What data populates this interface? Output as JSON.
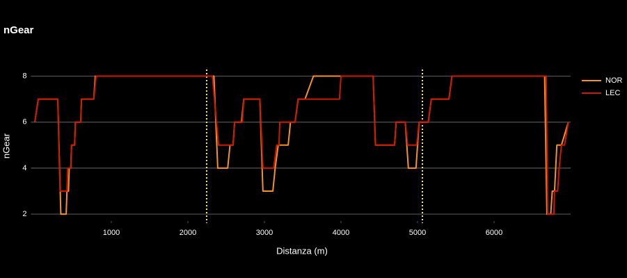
{
  "chart_data": {
    "type": "line",
    "title": "nGear",
    "x_label": "Distanza (m)",
    "y_label": "nGear",
    "xlim": [
      -50,
      7000
    ],
    "xticks": [
      1000,
      2000,
      3000,
      4000,
      5000,
      6000
    ],
    "ylim": [
      1.7,
      8.5
    ],
    "yticks": [
      2,
      4,
      6,
      8
    ],
    "grid": true,
    "legend": "right",
    "vlines": {
      "x": [
        2245,
        5064
      ],
      "color": "#ffe873"
    },
    "series": [
      {
        "name": "NOR",
        "color": "#f5922b",
        "x": [
          0,
          45,
          300,
          340,
          410,
          420,
          440,
          450,
          470,
          480,
          520,
          530,
          600,
          610,
          770,
          790,
          2340,
          2390,
          2520,
          2550,
          2590,
          2610,
          2700,
          2730,
          2940,
          2980,
          3110,
          3140,
          3180,
          3310,
          3340,
          3400,
          3440,
          3530,
          3640,
          4420,
          4450,
          4700,
          4720,
          4840,
          4880,
          4980,
          5020,
          5140,
          5180,
          5410,
          5450,
          6660,
          6690,
          6740,
          6760,
          6790,
          6820,
          6880,
          6970
        ],
        "values": [
          6,
          7,
          7,
          2,
          2,
          3,
          3,
          4,
          4,
          5,
          5,
          6,
          6,
          7,
          7,
          8,
          8,
          4,
          4,
          5,
          5,
          6,
          6,
          7,
          7,
          3,
          3,
          4,
          5,
          5,
          6,
          6,
          7,
          7,
          8,
          8,
          5,
          5,
          6,
          6,
          4,
          4,
          6,
          6,
          7,
          7,
          8,
          8,
          2,
          2,
          3,
          3,
          5,
          5,
          6
        ]
      },
      {
        "name": "LEC",
        "color": "#cc1a00",
        "x": [
          0,
          45,
          300,
          330,
          420,
          430,
          470,
          480,
          520,
          530,
          600,
          610,
          770,
          800,
          2320,
          2400,
          2590,
          2610,
          2710,
          2730,
          2940,
          2980,
          3120,
          3160,
          3190,
          3200,
          3400,
          3440,
          3980,
          4000,
          4420,
          4450,
          4700,
          4720,
          4840,
          4870,
          4990,
          5020,
          5140,
          5180,
          5410,
          5450,
          6680,
          6700,
          6780,
          6790,
          6830,
          6850,
          6880,
          6920,
          6970
        ],
        "values": [
          6,
          7,
          7,
          3,
          3,
          4,
          4,
          5,
          5,
          6,
          6,
          7,
          7,
          8,
          8,
          5,
          5,
          6,
          6,
          7,
          7,
          4,
          4,
          5,
          5,
          6,
          6,
          7,
          7,
          8,
          8,
          5,
          5,
          6,
          6,
          5,
          5,
          6,
          6,
          7,
          7,
          8,
          8,
          2,
          2,
          3,
          3,
          4,
          5,
          5,
          6
        ]
      }
    ]
  }
}
